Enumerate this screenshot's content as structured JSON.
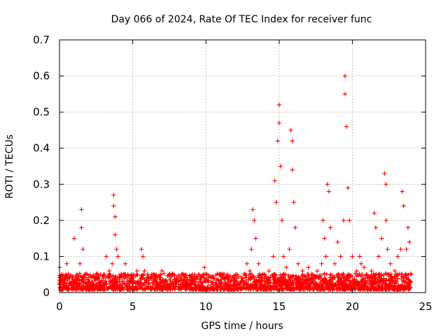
{
  "chart_data": {
    "type": "scatter",
    "title": "Day 066 of 2024, Rate Of TEC Index for receiver func",
    "xlabel": "GPS time / hours",
    "ylabel": "ROTI / TECUs",
    "xlim": [
      0,
      25
    ],
    "ylim": [
      0,
      0.7
    ],
    "xticks": [
      "0",
      "5",
      "10",
      "15",
      "20",
      "25"
    ],
    "yticks": [
      "0",
      "0.1",
      "0.2",
      "0.3",
      "0.4",
      "0.5",
      "0.6",
      "0.7"
    ],
    "grid": true,
    "marker": "+",
    "marker_color": "#ff0000",
    "series": [
      {
        "name": "ROTI",
        "x": [
          0.0,
          0.1,
          0.3,
          0.5,
          0.7,
          0.9,
          1.0,
          1.2,
          1.4,
          1.5,
          1.5,
          1.6,
          1.8,
          2.0,
          2.2,
          2.5,
          2.8,
          3.0,
          3.2,
          3.4,
          3.6,
          3.7,
          3.7,
          3.8,
          3.8,
          3.9,
          4.0,
          4.2,
          4.5,
          4.8,
          5.0,
          5.3,
          5.6,
          5.7,
          5.8,
          6.0,
          6.3,
          6.6,
          7.0,
          7.5,
          8.0,
          8.5,
          9.0,
          9.5,
          9.9,
          10.0,
          10.5,
          11.0,
          11.5,
          12.0,
          12.5,
          12.8,
          13.0,
          13.1,
          13.2,
          13.3,
          13.4,
          13.6,
          14.0,
          14.3,
          14.6,
          14.7,
          14.8,
          14.9,
          15.0,
          15.0,
          15.1,
          15.2,
          15.3,
          15.5,
          15.7,
          15.8,
          15.9,
          15.9,
          16.0,
          16.1,
          16.3,
          16.6,
          17.0,
          17.3,
          17.6,
          17.9,
          18.0,
          18.1,
          18.2,
          18.3,
          18.4,
          18.5,
          18.8,
          19.0,
          19.2,
          19.4,
          19.5,
          19.5,
          19.6,
          19.7,
          19.8,
          20.0,
          20.3,
          20.5,
          20.6,
          20.8,
          21.0,
          21.3,
          21.5,
          21.6,
          21.8,
          22.0,
          22.2,
          22.3,
          22.3,
          22.4,
          22.6,
          22.9,
          23.1,
          23.3,
          23.4,
          23.5,
          23.7,
          23.8,
          23.9,
          24.0
        ],
        "y": [
          0.07,
          0.03,
          0.02,
          0.08,
          0.04,
          0.03,
          0.15,
          0.05,
          0.08,
          0.23,
          0.18,
          0.12,
          0.05,
          0.03,
          0.03,
          0.04,
          0.05,
          0.04,
          0.1,
          0.06,
          0.08,
          0.27,
          0.24,
          0.21,
          0.16,
          0.12,
          0.1,
          0.05,
          0.08,
          0.04,
          0.03,
          0.06,
          0.12,
          0.1,
          0.06,
          0.04,
          0.05,
          0.04,
          0.06,
          0.05,
          0.04,
          0.03,
          0.04,
          0.05,
          0.07,
          0.03,
          0.04,
          0.03,
          0.05,
          0.03,
          0.04,
          0.08,
          0.06,
          0.12,
          0.23,
          0.2,
          0.15,
          0.08,
          0.04,
          0.06,
          0.1,
          0.31,
          0.25,
          0.42,
          0.52,
          0.47,
          0.35,
          0.2,
          0.1,
          0.07,
          0.12,
          0.45,
          0.42,
          0.34,
          0.25,
          0.18,
          0.08,
          0.06,
          0.07,
          0.05,
          0.06,
          0.08,
          0.2,
          0.15,
          0.1,
          0.3,
          0.28,
          0.18,
          0.08,
          0.14,
          0.1,
          0.2,
          0.6,
          0.55,
          0.46,
          0.29,
          0.2,
          0.1,
          0.06,
          0.1,
          0.08,
          0.07,
          0.05,
          0.06,
          0.22,
          0.18,
          0.1,
          0.15,
          0.33,
          0.3,
          0.2,
          0.12,
          0.08,
          0.06,
          0.1,
          0.12,
          0.28,
          0.24,
          0.12,
          0.18,
          0.14,
          0.05
        ]
      }
    ]
  }
}
